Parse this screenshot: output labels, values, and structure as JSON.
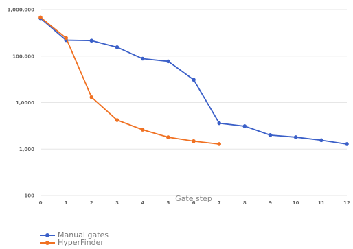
{
  "chart_data": {
    "type": "line",
    "title": "",
    "xlabel": "Gate step",
    "ylabel": "",
    "yscale": "log",
    "ylim": [
      100,
      1000000
    ],
    "yticks": [
      100,
      1000,
      10000,
      100000,
      1000000
    ],
    "ytick_labels": [
      "100",
      "1,000",
      "1,0000",
      "100,000",
      "1,000,000"
    ],
    "xticks": [
      0,
      1,
      2,
      3,
      4,
      5,
      6,
      7,
      8,
      9,
      10,
      11,
      12
    ],
    "xlim": [
      0,
      12
    ],
    "grid": true,
    "legend_position": "bottom-left",
    "series": [
      {
        "name": "Manual gates",
        "color": "#3a5fc8",
        "x": [
          0,
          1,
          2,
          3,
          4,
          5,
          6,
          7,
          8,
          9,
          10,
          11,
          12
        ],
        "values": [
          650000,
          220000,
          215000,
          155000,
          88000,
          77000,
          31000,
          3600,
          3100,
          2000,
          1800,
          1550,
          1280
        ]
      },
      {
        "name": "HyperFinder",
        "color": "#f07122",
        "x": [
          0,
          1,
          2,
          3,
          4,
          5,
          6,
          7
        ],
        "values": [
          680000,
          245000,
          13000,
          4200,
          2600,
          1800,
          1480,
          1280
        ]
      }
    ]
  }
}
